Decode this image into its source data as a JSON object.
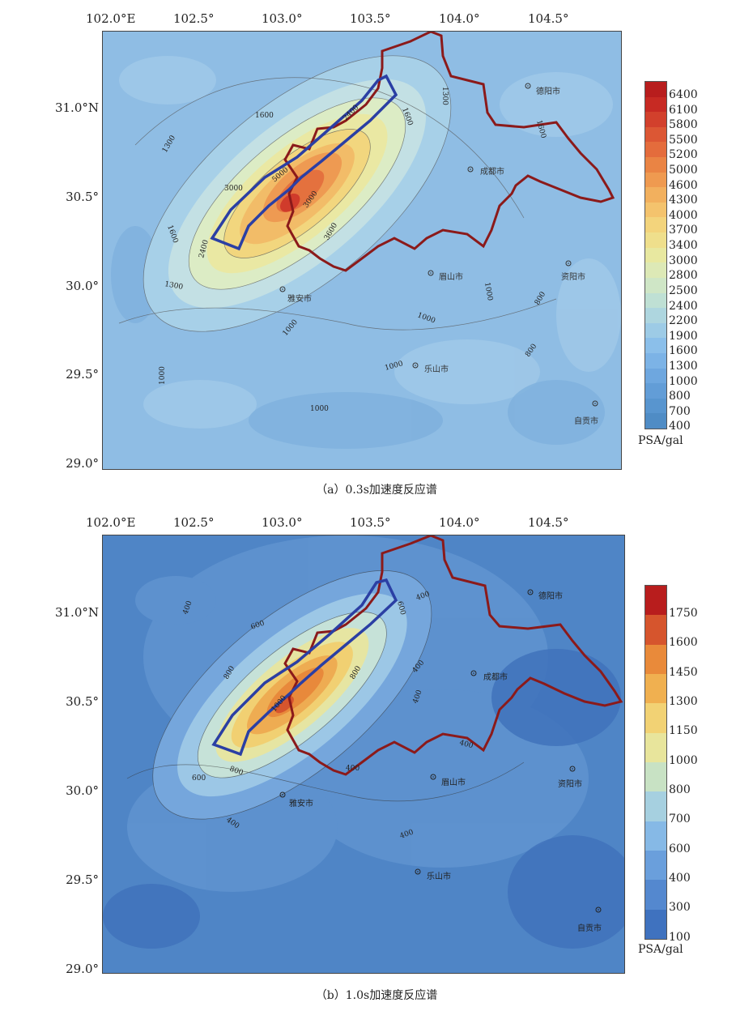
{
  "panels": [
    {
      "id": "a",
      "caption": "（a）0.3s加速度反应谱",
      "lon_ticks": [
        "102.0°E",
        "102.5°",
        "103.0°",
        "103.5°",
        "104.0°",
        "104.5°"
      ],
      "lat_ticks": [
        "31.0°N",
        "30.5°",
        "30.0°",
        "29.5°",
        "29.0°"
      ],
      "colorbar_labels": [
        "6400",
        "6100",
        "5800",
        "5500",
        "5200",
        "5000",
        "4600",
        "4300",
        "4000",
        "3700",
        "3400",
        "3000",
        "2800",
        "2500",
        "2400",
        "2200",
        "1900",
        "1600",
        "1300",
        "1000",
        "800",
        "700",
        "400"
      ],
      "colorbar_colors": [
        "#b81d1d",
        "#c72a23",
        "#d2402c",
        "#dc5734",
        "#e46c3c",
        "#ea8444",
        "#ef9a50",
        "#f2b05e",
        "#f4c36d",
        "#f3d47c",
        "#efdf8c",
        "#e8e8a0",
        "#dde9b6",
        "#cfe6c6",
        "#bfe0d4",
        "#aed6df",
        "#9dcbe6",
        "#8bbfea",
        "#7cb3e6",
        "#6ea7df",
        "#629dd7",
        "#5895cf",
        "#4f8cc5"
      ],
      "unit": "PSA/gal",
      "cities": [
        "德阳市",
        "成都市",
        "眉山市",
        "资阳市",
        "雅安市",
        "乐山市",
        "自贡市"
      ],
      "contour_labels": [
        "1600",
        "2400",
        "1300",
        "1600",
        "3000",
        "5000",
        "2400",
        "3000",
        "1600",
        "1300",
        "1000",
        "1000",
        "1000",
        "1000",
        "800",
        "800",
        "1000",
        "1000",
        "1300",
        "1600",
        "3600"
      ]
    },
    {
      "id": "b",
      "caption": "（b）1.0s加速度反应谱",
      "lon_ticks": [
        "102.0°E",
        "102.5°",
        "103.0°",
        "103.5°",
        "104.0°",
        "104.5°"
      ],
      "lat_ticks": [
        "31.0°N",
        "30.5°",
        "30.0°",
        "29.5°",
        "29.0°"
      ],
      "colorbar_labels": [
        "1750",
        "1600",
        "1450",
        "1300",
        "1150",
        "1000",
        "800",
        "700",
        "600",
        "400",
        "300",
        "100"
      ],
      "colorbar_colors": [
        "#b81d1d",
        "#d6552d",
        "#e98a3a",
        "#f0b050",
        "#f2d274",
        "#e8e59c",
        "#c8e2c4",
        "#a6d0e0",
        "#86b9e6",
        "#6a9fdc",
        "#5488cf",
        "#3f72bf"
      ],
      "unit": "PSA/gal",
      "cities": [
        "德阳市",
        "成都市",
        "眉山市",
        "资阳市",
        "雅安市",
        "乐山市",
        "自贡市"
      ],
      "contour_labels": [
        "400",
        "600",
        "600",
        "400",
        "800",
        "800",
        "400",
        "400",
        "1000",
        "800",
        "600",
        "400",
        "400",
        "400",
        "400"
      ]
    }
  ]
}
